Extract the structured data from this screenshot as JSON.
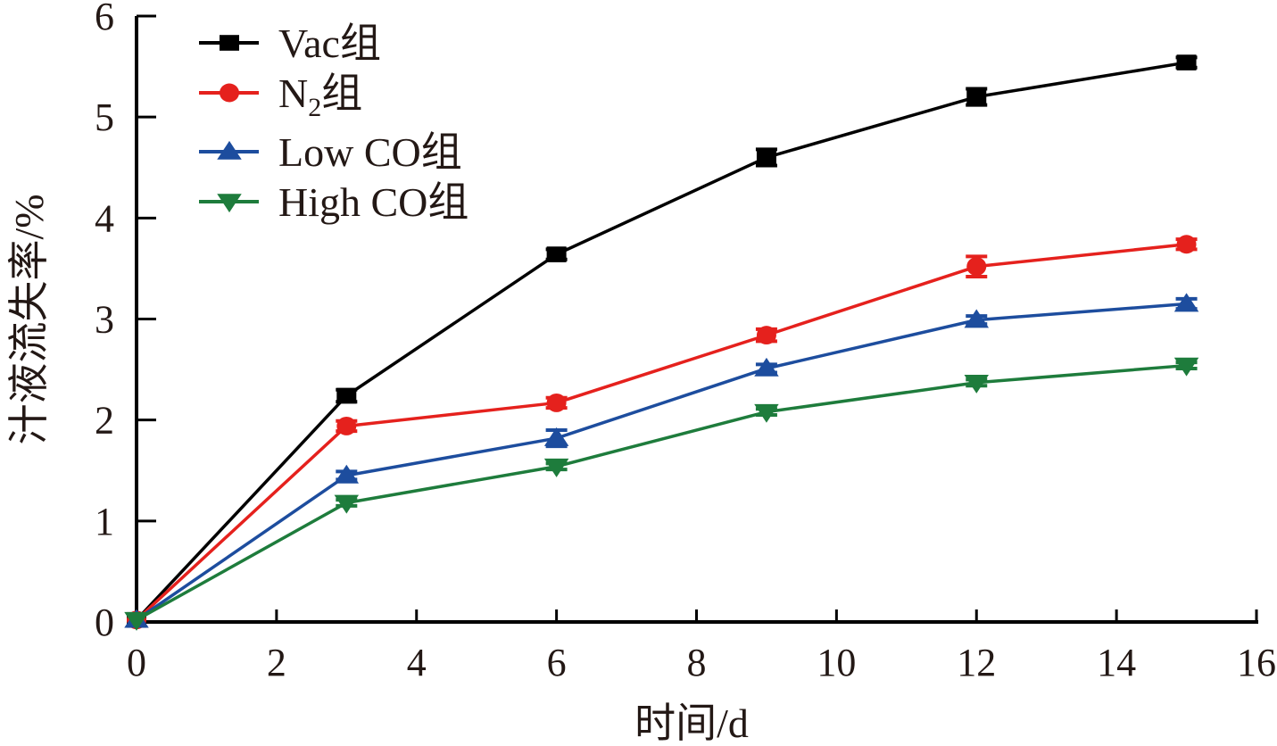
{
  "chart_data": {
    "type": "line",
    "title": "",
    "xlabel": "时间/d",
    "ylabel": "汁液流失率/%",
    "xlim": [
      0,
      16
    ],
    "ylim": [
      0,
      6
    ],
    "xticks": [
      0,
      2,
      4,
      6,
      8,
      10,
      12,
      14,
      16
    ],
    "yticks": [
      0,
      1,
      2,
      3,
      4,
      5,
      6
    ],
    "grid": false,
    "legend_position": "top-left",
    "x": [
      0,
      3,
      6,
      9,
      12,
      15
    ],
    "series": [
      {
        "name": "Vac组",
        "name_main": "Vac组",
        "name_sub": "",
        "name_tail": "",
        "color": "#000000",
        "marker": "square",
        "values": [
          0.02,
          2.24,
          3.64,
          4.6,
          5.2,
          5.54
        ],
        "errors": [
          0.02,
          0.06,
          0.05,
          0.08,
          0.08,
          0.05
        ]
      },
      {
        "name": "N2组",
        "name_main": "N",
        "name_sub": "2",
        "name_tail": "组",
        "color": "#e5211d",
        "marker": "circle",
        "values": [
          0.02,
          1.94,
          2.17,
          2.84,
          3.52,
          3.74
        ],
        "errors": [
          0.02,
          0.05,
          0.05,
          0.06,
          0.1,
          0.05
        ]
      },
      {
        "name": "Low CO组",
        "name_main": "Low CO组",
        "name_sub": "",
        "name_tail": "",
        "color": "#1d4d9e",
        "marker": "triangle-up",
        "values": [
          0.02,
          1.45,
          1.82,
          2.51,
          2.99,
          3.15
        ],
        "errors": [
          0.02,
          0.04,
          0.08,
          0.04,
          0.04,
          0.05
        ]
      },
      {
        "name": "High CO组",
        "name_main": "High CO组",
        "name_sub": "",
        "name_tail": "",
        "color": "#1e7c3c",
        "marker": "triangle-down",
        "values": [
          0.02,
          1.18,
          1.54,
          2.08,
          2.37,
          2.54
        ],
        "errors": [
          0.02,
          0.03,
          0.03,
          0.03,
          0.03,
          0.03
        ]
      }
    ]
  }
}
